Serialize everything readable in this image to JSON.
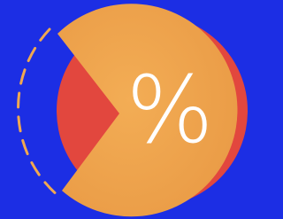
{
  "icon": {
    "symbol": "%"
  }
}
